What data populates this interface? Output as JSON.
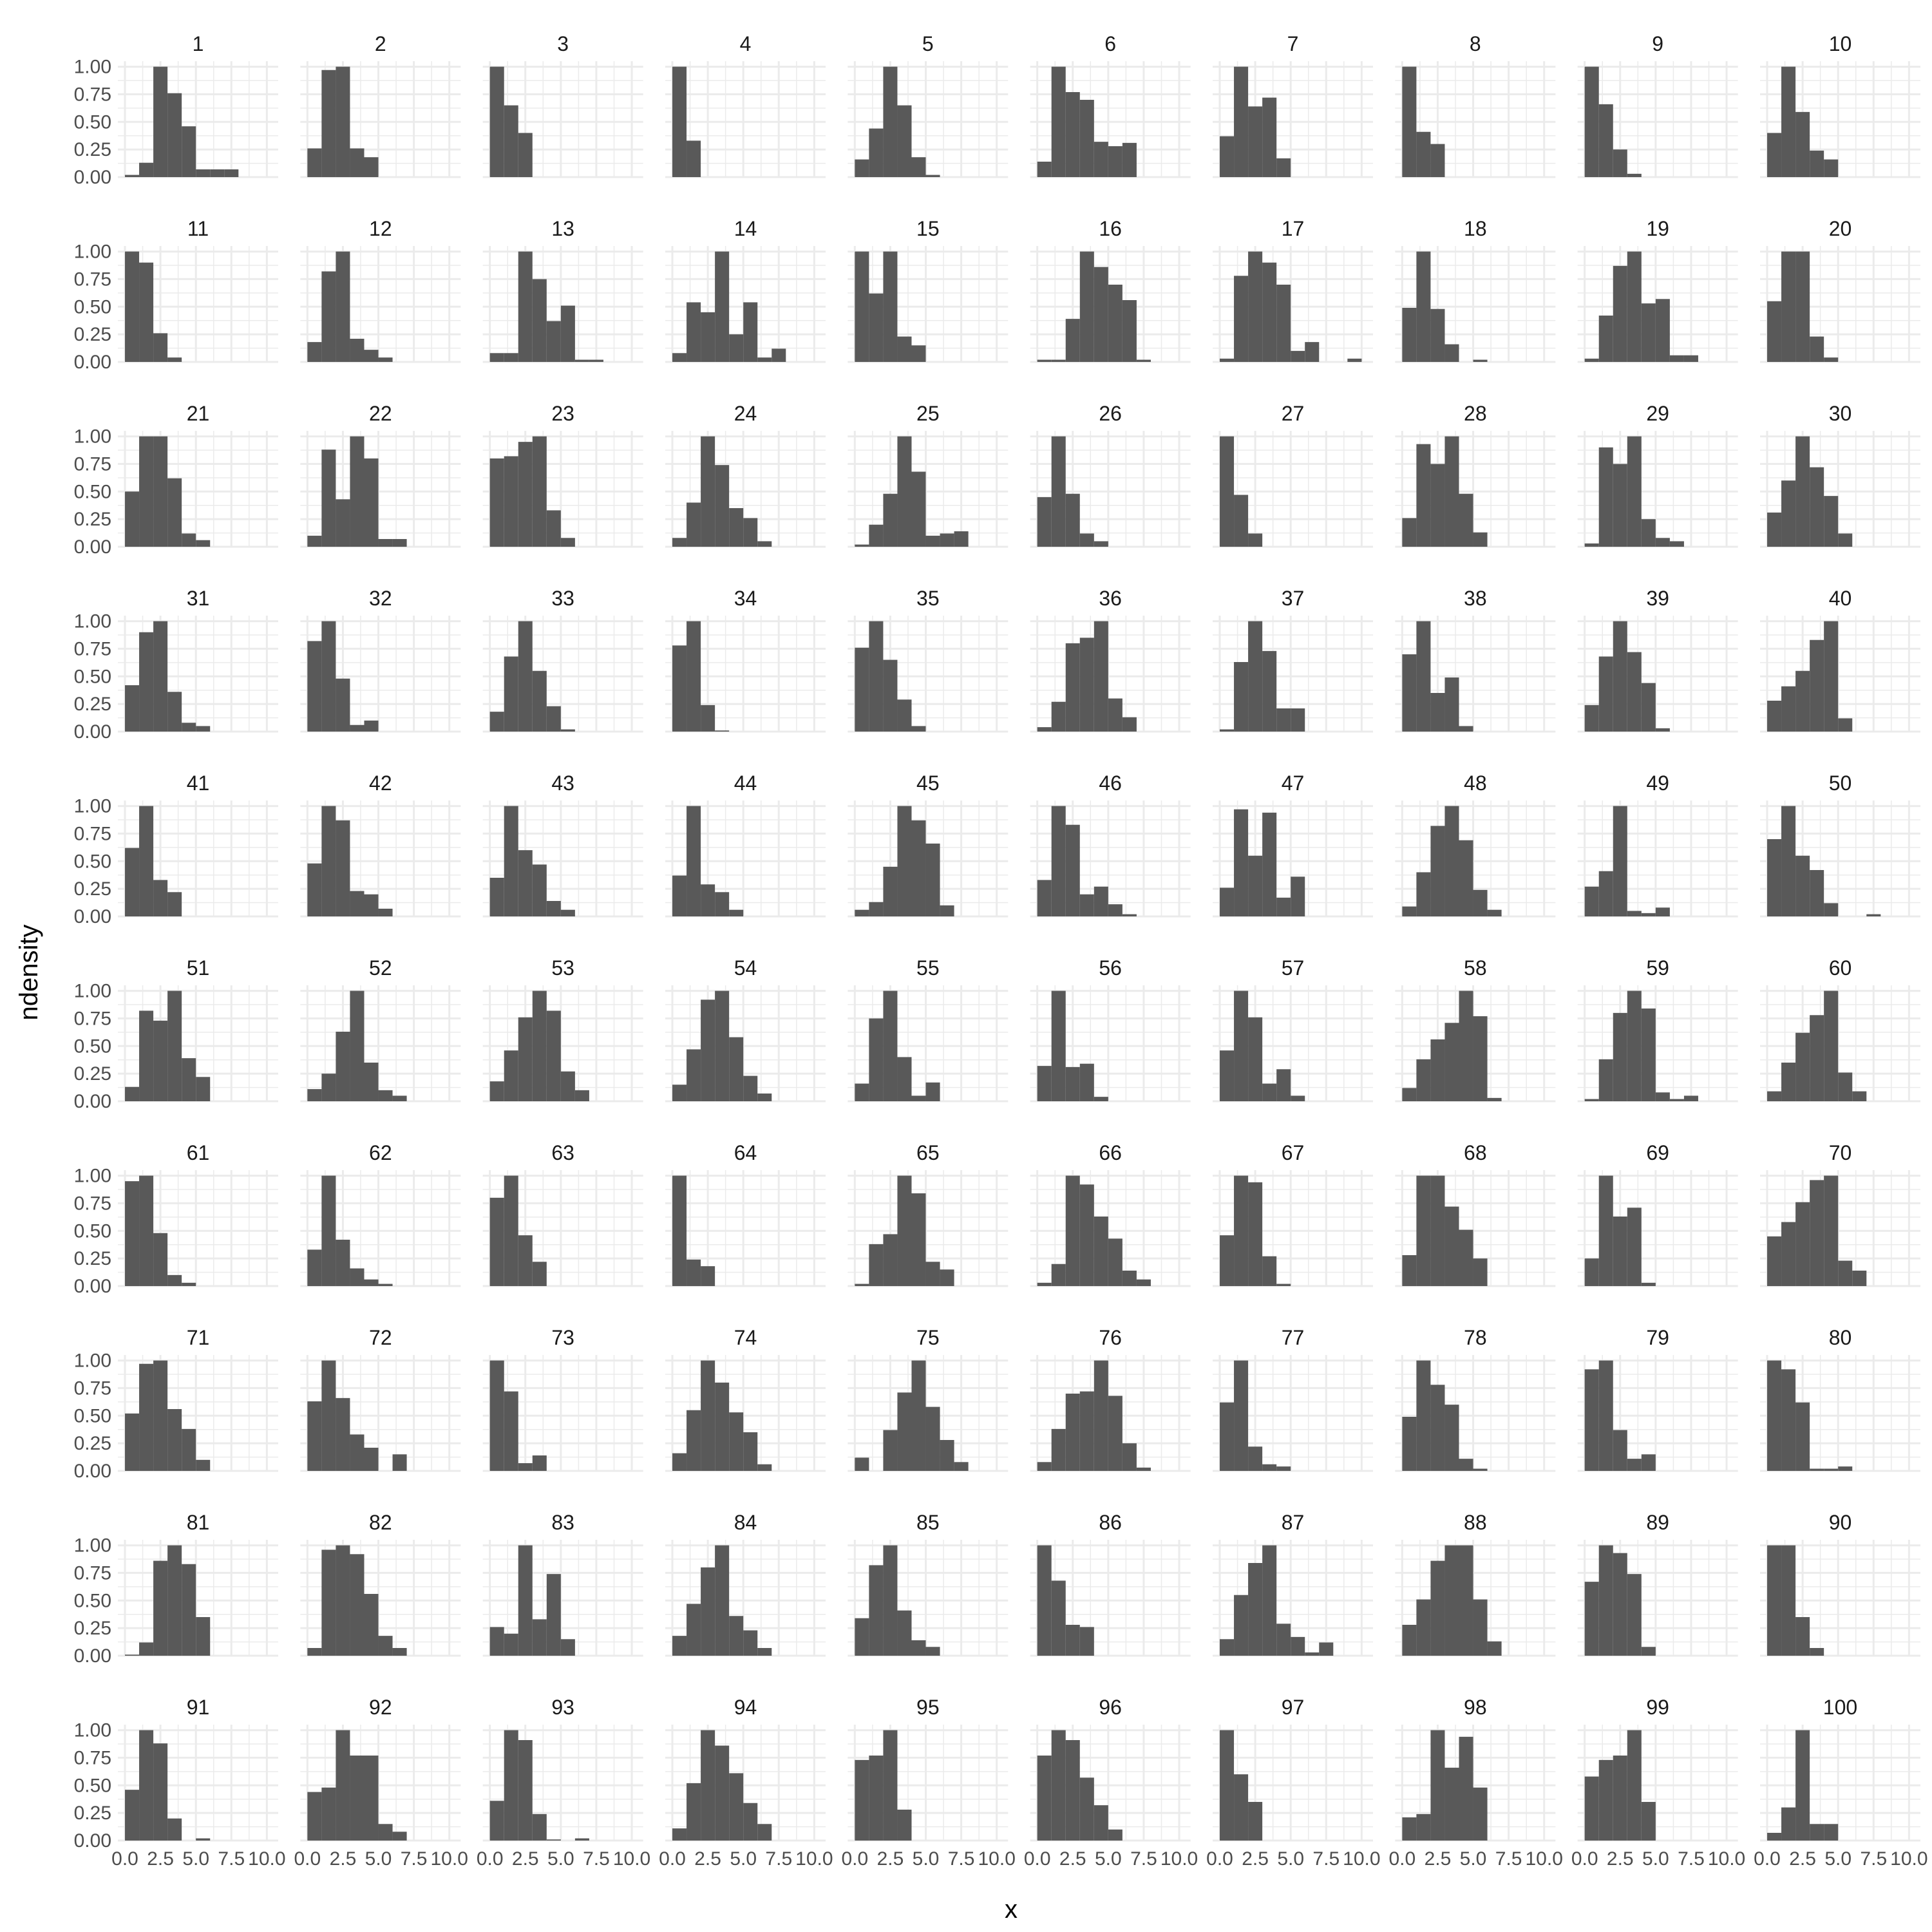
{
  "chart_data": {
    "type": "bar",
    "subtype": "faceted-histogram",
    "xlabel": "x",
    "ylabel": "ndensity",
    "xlim": [
      -0.5,
      10.8
    ],
    "ylim": [
      0,
      1.05
    ],
    "x_ticks": [
      0.0,
      2.5,
      5.0,
      7.5,
      10.0
    ],
    "x_tick_labels": [
      "0.0",
      "2.5",
      "5.0",
      "7.5",
      "10.0"
    ],
    "y_ticks": [
      0,
      0.25,
      0.5,
      0.75,
      1.0
    ],
    "y_tick_labels": [
      "0.00",
      "0.25",
      "0.50",
      "0.75",
      "1.00"
    ],
    "bin_width": 1.0,
    "bin_start": 0.0,
    "bar_color": "#595959",
    "grid": true,
    "grid_color": "#ebebeb",
    "layout": {
      "rows": 10,
      "cols": 10
    },
    "panels": [
      {
        "label": "1",
        "values": [
          0.02,
          0.13,
          1.0,
          0.76,
          0.46,
          0.07,
          0.07,
          0.07
        ]
      },
      {
        "label": "2",
        "values": [
          0.26,
          0.97,
          1.0,
          0.26,
          0.18
        ]
      },
      {
        "label": "3",
        "values": [
          1.0,
          0.65,
          0.4
        ]
      },
      {
        "label": "4",
        "values": [
          1.0,
          0.33
        ]
      },
      {
        "label": "5",
        "values": [
          0.16,
          0.44,
          1.0,
          0.65,
          0.18,
          0.02
        ]
      },
      {
        "label": "6",
        "values": [
          0.14,
          1.0,
          0.77,
          0.7,
          0.32,
          0.28,
          0.31
        ]
      },
      {
        "label": "7",
        "values": [
          0.37,
          1.0,
          0.64,
          0.72,
          0.17
        ]
      },
      {
        "label": "8",
        "values": [
          1.0,
          0.41,
          0.3
        ]
      },
      {
        "label": "9",
        "values": [
          1.0,
          0.66,
          0.25,
          0.03
        ]
      },
      {
        "label": "10",
        "values": [
          0.4,
          1.0,
          0.59,
          0.24,
          0.16
        ]
      },
      {
        "label": "11",
        "values": [
          1.0,
          0.9,
          0.26,
          0.04
        ]
      },
      {
        "label": "12",
        "values": [
          0.18,
          0.82,
          1.0,
          0.21,
          0.11,
          0.04
        ]
      },
      {
        "label": "13",
        "values": [
          0.08,
          0.08,
          1.0,
          0.75,
          0.37,
          0.51,
          0.02,
          0.02
        ]
      },
      {
        "label": "14",
        "values": [
          0.08,
          0.54,
          0.45,
          1.0,
          0.25,
          0.54,
          0.04,
          0.12
        ]
      },
      {
        "label": "15",
        "values": [
          1.0,
          0.62,
          1.0,
          0.23,
          0.15
        ]
      },
      {
        "label": "16",
        "values": [
          0.02,
          0.02,
          0.39,
          1.0,
          0.86,
          0.7,
          0.56,
          0.02
        ]
      },
      {
        "label": "17",
        "values": [
          0.03,
          0.78,
          1.0,
          0.9,
          0.7,
          0.1,
          0.18,
          0,
          0,
          0.03
        ]
      },
      {
        "label": "18",
        "values": [
          0.49,
          1.0,
          0.48,
          0.16,
          0,
          0.02
        ]
      },
      {
        "label": "19",
        "values": [
          0.03,
          0.42,
          0.87,
          1.0,
          0.53,
          0.57,
          0.06,
          0.06
        ]
      },
      {
        "label": "20",
        "values": [
          0.55,
          1.0,
          1.0,
          0.23,
          0.04
        ]
      },
      {
        "label": "21",
        "values": [
          0.5,
          1.0,
          1.0,
          0.62,
          0.12,
          0.06
        ]
      },
      {
        "label": "22",
        "values": [
          0.1,
          0.88,
          0.43,
          1.0,
          0.8,
          0.07,
          0.07
        ]
      },
      {
        "label": "23",
        "values": [
          0.8,
          0.82,
          0.95,
          1.0,
          0.33,
          0.08
        ]
      },
      {
        "label": "24",
        "values": [
          0.08,
          0.4,
          1.0,
          0.74,
          0.35,
          0.26,
          0.05
        ]
      },
      {
        "label": "25",
        "values": [
          0.02,
          0.2,
          0.48,
          1.0,
          0.68,
          0.1,
          0.12,
          0.14
        ]
      },
      {
        "label": "26",
        "values": [
          0.45,
          1.0,
          0.48,
          0.12,
          0.05
        ]
      },
      {
        "label": "27",
        "values": [
          1.0,
          0.47,
          0.12
        ]
      },
      {
        "label": "28",
        "values": [
          0.26,
          0.93,
          0.75,
          1.0,
          0.48,
          0.13
        ]
      },
      {
        "label": "29",
        "values": [
          0.03,
          0.9,
          0.75,
          1.0,
          0.25,
          0.08,
          0.05
        ]
      },
      {
        "label": "30",
        "values": [
          0.31,
          0.6,
          1.0,
          0.72,
          0.46,
          0.12
        ]
      },
      {
        "label": "31",
        "values": [
          0.42,
          0.9,
          1.0,
          0.36,
          0.08,
          0.05
        ]
      },
      {
        "label": "32",
        "values": [
          0.82,
          1.0,
          0.48,
          0.06,
          0.1
        ]
      },
      {
        "label": "33",
        "values": [
          0.18,
          0.68,
          1.0,
          0.55,
          0.23,
          0.02
        ]
      },
      {
        "label": "34",
        "values": [
          0.78,
          1.0,
          0.24,
          0.01
        ]
      },
      {
        "label": "35",
        "values": [
          0.76,
          1.0,
          0.65,
          0.29,
          0.05
        ]
      },
      {
        "label": "36",
        "values": [
          0.04,
          0.27,
          0.8,
          0.85,
          1.0,
          0.3,
          0.13
        ]
      },
      {
        "label": "37",
        "values": [
          0.02,
          0.63,
          1.0,
          0.73,
          0.21,
          0.21
        ]
      },
      {
        "label": "38",
        "values": [
          0.7,
          1.0,
          0.35,
          0.49,
          0.05
        ]
      },
      {
        "label": "39",
        "values": [
          0.24,
          0.68,
          1.0,
          0.72,
          0.44,
          0.03
        ]
      },
      {
        "label": "40",
        "values": [
          0.28,
          0.41,
          0.55,
          0.83,
          1.0,
          0.12
        ]
      },
      {
        "label": "41",
        "values": [
          0.62,
          1.0,
          0.33,
          0.22
        ]
      },
      {
        "label": "42",
        "values": [
          0.48,
          1.0,
          0.87,
          0.23,
          0.2,
          0.07
        ]
      },
      {
        "label": "43",
        "values": [
          0.35,
          1.0,
          0.6,
          0.47,
          0.14,
          0.06
        ]
      },
      {
        "label": "44",
        "values": [
          0.37,
          1.0,
          0.29,
          0.22,
          0.06
        ]
      },
      {
        "label": "45",
        "values": [
          0.06,
          0.13,
          0.45,
          1.0,
          0.87,
          0.66,
          0.1
        ]
      },
      {
        "label": "46",
        "values": [
          0.33,
          1.0,
          0.83,
          0.2,
          0.27,
          0.11,
          0.02
        ]
      },
      {
        "label": "47",
        "values": [
          0.26,
          0.97,
          0.55,
          0.94,
          0.17,
          0.36
        ]
      },
      {
        "label": "48",
        "values": [
          0.09,
          0.4,
          0.82,
          1.0,
          0.69,
          0.24,
          0.06
        ]
      },
      {
        "label": "49",
        "values": [
          0.27,
          0.41,
          1.0,
          0.05,
          0.03,
          0.08
        ]
      },
      {
        "label": "50",
        "values": [
          0.7,
          1.0,
          0.55,
          0.42,
          0.12,
          0,
          0,
          0.02
        ]
      },
      {
        "label": "51",
        "values": [
          0.13,
          0.82,
          0.73,
          1.0,
          0.39,
          0.22
        ]
      },
      {
        "label": "52",
        "values": [
          0.11,
          0.25,
          0.63,
          1.0,
          0.35,
          0.1,
          0.05
        ]
      },
      {
        "label": "53",
        "values": [
          0.18,
          0.46,
          0.76,
          1.0,
          0.82,
          0.27,
          0.1
        ]
      },
      {
        "label": "54",
        "values": [
          0.15,
          0.47,
          0.92,
          1.0,
          0.58,
          0.23,
          0.07
        ]
      },
      {
        "label": "55",
        "values": [
          0.16,
          0.75,
          1.0,
          0.4,
          0.05,
          0.17
        ]
      },
      {
        "label": "56",
        "values": [
          0.32,
          1.0,
          0.31,
          0.34,
          0.04
        ]
      },
      {
        "label": "57",
        "values": [
          0.46,
          1.0,
          0.76,
          0.16,
          0.29,
          0.05
        ]
      },
      {
        "label": "58",
        "values": [
          0.12,
          0.38,
          0.56,
          0.71,
          1.0,
          0.77,
          0.03
        ]
      },
      {
        "label": "59",
        "values": [
          0.02,
          0.38,
          0.8,
          1.0,
          0.84,
          0.08,
          0.02,
          0.05
        ]
      },
      {
        "label": "60",
        "values": [
          0.09,
          0.35,
          0.62,
          0.78,
          1.0,
          0.26,
          0.09
        ]
      },
      {
        "label": "61",
        "values": [
          0.95,
          1.0,
          0.48,
          0.1,
          0.03
        ]
      },
      {
        "label": "62",
        "values": [
          0.33,
          1.0,
          0.42,
          0.16,
          0.06,
          0.02
        ]
      },
      {
        "label": "63",
        "values": [
          0.8,
          1.0,
          0.46,
          0.22
        ]
      },
      {
        "label": "64",
        "values": [
          1.0,
          0.24,
          0.18
        ]
      },
      {
        "label": "65",
        "values": [
          0.02,
          0.38,
          0.47,
          1.0,
          0.84,
          0.22,
          0.15
        ]
      },
      {
        "label": "66",
        "values": [
          0.03,
          0.2,
          1.0,
          0.92,
          0.63,
          0.43,
          0.14,
          0.06
        ]
      },
      {
        "label": "67",
        "values": [
          0.46,
          1.0,
          0.94,
          0.27,
          0.02
        ]
      },
      {
        "label": "68",
        "values": [
          0.28,
          1.0,
          1.0,
          0.72,
          0.51,
          0.25
        ]
      },
      {
        "label": "69",
        "values": [
          0.25,
          1.0,
          0.63,
          0.71,
          0.03
        ]
      },
      {
        "label": "70",
        "values": [
          0.45,
          0.58,
          0.76,
          0.96,
          1.0,
          0.23,
          0.14
        ]
      },
      {
        "label": "71",
        "values": [
          0.52,
          0.97,
          1.0,
          0.56,
          0.38,
          0.1
        ]
      },
      {
        "label": "72",
        "values": [
          0.63,
          1.0,
          0.66,
          0.33,
          0.21,
          0,
          0.15
        ]
      },
      {
        "label": "73",
        "values": [
          1.0,
          0.72,
          0.07,
          0.14
        ]
      },
      {
        "label": "74",
        "values": [
          0.16,
          0.55,
          1.0,
          0.8,
          0.53,
          0.35,
          0.06
        ]
      },
      {
        "label": "75",
        "values": [
          0.12,
          0,
          0.37,
          0.71,
          1.0,
          0.58,
          0.28,
          0.08
        ]
      },
      {
        "label": "76",
        "values": [
          0.08,
          0.38,
          0.7,
          0.72,
          1.0,
          0.68,
          0.25,
          0.03
        ]
      },
      {
        "label": "77",
        "values": [
          0.62,
          1.0,
          0.22,
          0.06,
          0.04
        ]
      },
      {
        "label": "78",
        "values": [
          0.49,
          1.0,
          0.78,
          0.6,
          0.11,
          0.02
        ]
      },
      {
        "label": "79",
        "values": [
          0.92,
          1.0,
          0.37,
          0.11,
          0.15
        ]
      },
      {
        "label": "80",
        "values": [
          1.0,
          0.92,
          0.62,
          0.02,
          0.02,
          0.04
        ]
      },
      {
        "label": "81",
        "values": [
          0.01,
          0.12,
          0.86,
          1.0,
          0.83,
          0.35
        ]
      },
      {
        "label": "82",
        "values": [
          0.07,
          0.96,
          1.0,
          0.92,
          0.56,
          0.18,
          0.07
        ]
      },
      {
        "label": "83",
        "values": [
          0.26,
          0.2,
          1.0,
          0.33,
          0.74,
          0.15
        ]
      },
      {
        "label": "84",
        "values": [
          0.18,
          0.47,
          0.8,
          1.0,
          0.36,
          0.23,
          0.07
        ]
      },
      {
        "label": "85",
        "values": [
          0.34,
          0.82,
          1.0,
          0.41,
          0.14,
          0.08
        ]
      },
      {
        "label": "86",
        "values": [
          1.0,
          0.68,
          0.28,
          0.26
        ]
      },
      {
        "label": "87",
        "values": [
          0.15,
          0.55,
          0.84,
          1.0,
          0.29,
          0.17,
          0.03,
          0.12
        ]
      },
      {
        "label": "88",
        "values": [
          0.28,
          0.51,
          0.86,
          1.0,
          1.0,
          0.51,
          0.13
        ]
      },
      {
        "label": "89",
        "values": [
          0.67,
          1.0,
          0.93,
          0.74,
          0.08
        ]
      },
      {
        "label": "90",
        "values": [
          1.0,
          1.0,
          0.35,
          0.07
        ]
      },
      {
        "label": "91",
        "values": [
          0.46,
          1.0,
          0.88,
          0.2,
          0,
          0.02
        ]
      },
      {
        "label": "92",
        "values": [
          0.44,
          0.48,
          1.0,
          0.77,
          0.77,
          0.15,
          0.08
        ]
      },
      {
        "label": "93",
        "values": [
          0.36,
          1.0,
          0.91,
          0.24,
          0.01,
          0,
          0.02
        ]
      },
      {
        "label": "94",
        "values": [
          0.11,
          0.52,
          1.0,
          0.86,
          0.61,
          0.34,
          0.15
        ]
      },
      {
        "label": "95",
        "values": [
          0.73,
          0.77,
          1.0,
          0.28
        ]
      },
      {
        "label": "96",
        "values": [
          0.77,
          1.0,
          0.91,
          0.57,
          0.32,
          0.1
        ]
      },
      {
        "label": "97",
        "values": [
          1.0,
          0.6,
          0.35
        ]
      },
      {
        "label": "98",
        "values": [
          0.21,
          0.24,
          1.0,
          0.66,
          0.94,
          0.48
        ]
      },
      {
        "label": "99",
        "values": [
          0.58,
          0.73,
          0.77,
          1.0,
          0.35
        ]
      },
      {
        "label": "100",
        "values": [
          0.07,
          0.3,
          1.0,
          0.15,
          0.15
        ]
      }
    ]
  }
}
